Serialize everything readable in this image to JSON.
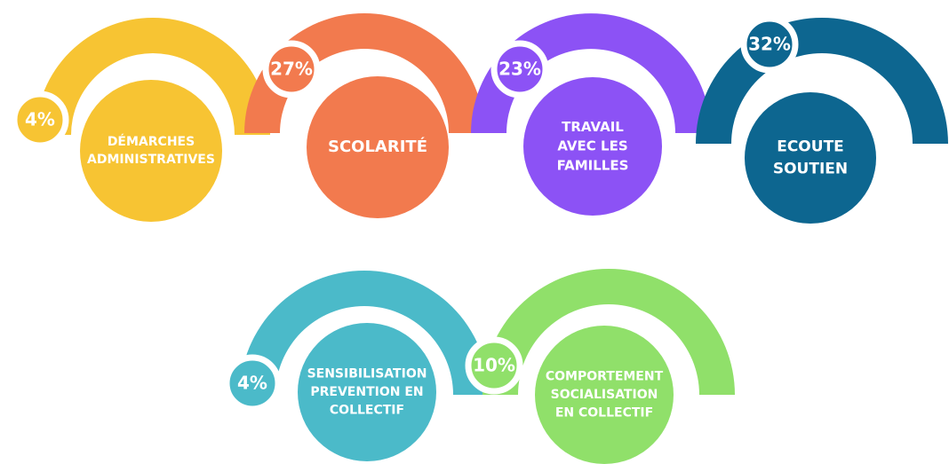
{
  "items": [
    {
      "label": [
        "DÉMARCHES",
        "ADMINISTRATIVES"
      ],
      "percent": "4%",
      "color": "#f7c433"
    },
    {
      "label": [
        "SCOLARITÉ"
      ],
      "percent": "27%",
      "color": "#f27a4e"
    },
    {
      "label": [
        "TRAVAIL",
        "AVEC LES",
        "FAMILLES"
      ],
      "percent": "23%",
      "color": "#8c52f5"
    },
    {
      "label": [
        "ECOUTE",
        "SOUTIEN"
      ],
      "percent": "32%",
      "color": "#0d6690"
    },
    {
      "label": [
        "SENSIBILISATION",
        "PREVENTION EN",
        "COLLECTIF"
      ],
      "percent": "4%",
      "color": "#4bbac9"
    },
    {
      "label": [
        "COMPORTEMENT",
        "SOCIALISATION",
        "EN COLLECTIF"
      ],
      "percent": "10%",
      "color": "#90e06a"
    }
  ]
}
